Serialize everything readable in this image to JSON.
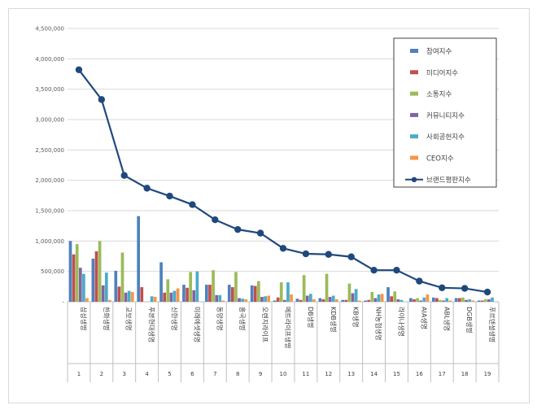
{
  "chart_data": {
    "type": "bar",
    "title": "",
    "xlabel": "",
    "ylabel": "",
    "ylim": [
      0,
      4500000
    ],
    "yticks": [
      "-",
      "500,000",
      "1,000,000",
      "1,500,000",
      "2,000,000",
      "2,500,000",
      "3,000,000",
      "3,500,000",
      "4,000,000",
      "4,500,000"
    ],
    "grid": true,
    "legend_position": "top-right",
    "categories": [
      "삼성생명",
      "한화생명",
      "교보생명",
      "푸본현대생명",
      "신한생명",
      "미래에셋생명",
      "동양생명",
      "흥국생명",
      "오렌지라이프",
      "메트라이프생명",
      "DB생명",
      "KDB생명",
      "KB생명",
      "NH농협생명",
      "라이나생명",
      "AIA생명",
      "ABL생명",
      "DGB생명",
      "푸르덴셜생명"
    ],
    "ranks": [
      "1",
      "2",
      "3",
      "4",
      "5",
      "6",
      "7",
      "8",
      "9",
      "10",
      "11",
      "12",
      "13",
      "14",
      "15",
      "16",
      "17",
      "18",
      "19"
    ],
    "series": [
      {
        "name": "참여지수",
        "color": "#4f81bd",
        "values": [
          1000000,
          710000,
          510000,
          1410000,
          650000,
          280000,
          280000,
          280000,
          270000,
          20000,
          50000,
          60000,
          30000,
          20000,
          240000,
          60000,
          70000,
          60000,
          20000
        ]
      },
      {
        "name": "미디어지수",
        "color": "#c0504d",
        "values": [
          780000,
          830000,
          250000,
          240000,
          150000,
          230000,
          280000,
          240000,
          260000,
          70000,
          30000,
          40000,
          30000,
          30000,
          90000,
          40000,
          60000,
          60000,
          20000
        ]
      },
      {
        "name": "소통지수",
        "color": "#9bbb59",
        "values": [
          950000,
          1000000,
          810000,
          0,
          370000,
          490000,
          520000,
          490000,
          340000,
          320000,
          440000,
          460000,
          300000,
          160000,
          170000,
          60000,
          30000,
          70000,
          40000
        ]
      },
      {
        "name": "커뮤니티지수",
        "color": "#8064a2",
        "values": [
          560000,
          270000,
          150000,
          0,
          150000,
          190000,
          110000,
          60000,
          80000,
          30000,
          100000,
          80000,
          140000,
          60000,
          40000,
          20000,
          20000,
          30000,
          40000
        ]
      },
      {
        "name": "사회공헌지수",
        "color": "#4bacc6",
        "values": [
          460000,
          480000,
          180000,
          90000,
          180000,
          500000,
          110000,
          50000,
          90000,
          320000,
          130000,
          100000,
          210000,
          120000,
          30000,
          70000,
          60000,
          40000,
          70000
        ]
      },
      {
        "name": "CEO지수",
        "color": "#f79646",
        "values": [
          60000,
          30000,
          160000,
          80000,
          220000,
          0,
          20000,
          40000,
          100000,
          120000,
          40000,
          40000,
          20000,
          130000,
          0,
          120000,
          20000,
          20000,
          0
        ]
      }
    ],
    "line": {
      "name": "브랜드평판지수",
      "color": "#1f497d",
      "values": [
        3820000,
        3330000,
        2080000,
        1870000,
        1740000,
        1600000,
        1350000,
        1190000,
        1130000,
        880000,
        790000,
        780000,
        740000,
        520000,
        520000,
        340000,
        230000,
        220000,
        160000
      ]
    }
  }
}
